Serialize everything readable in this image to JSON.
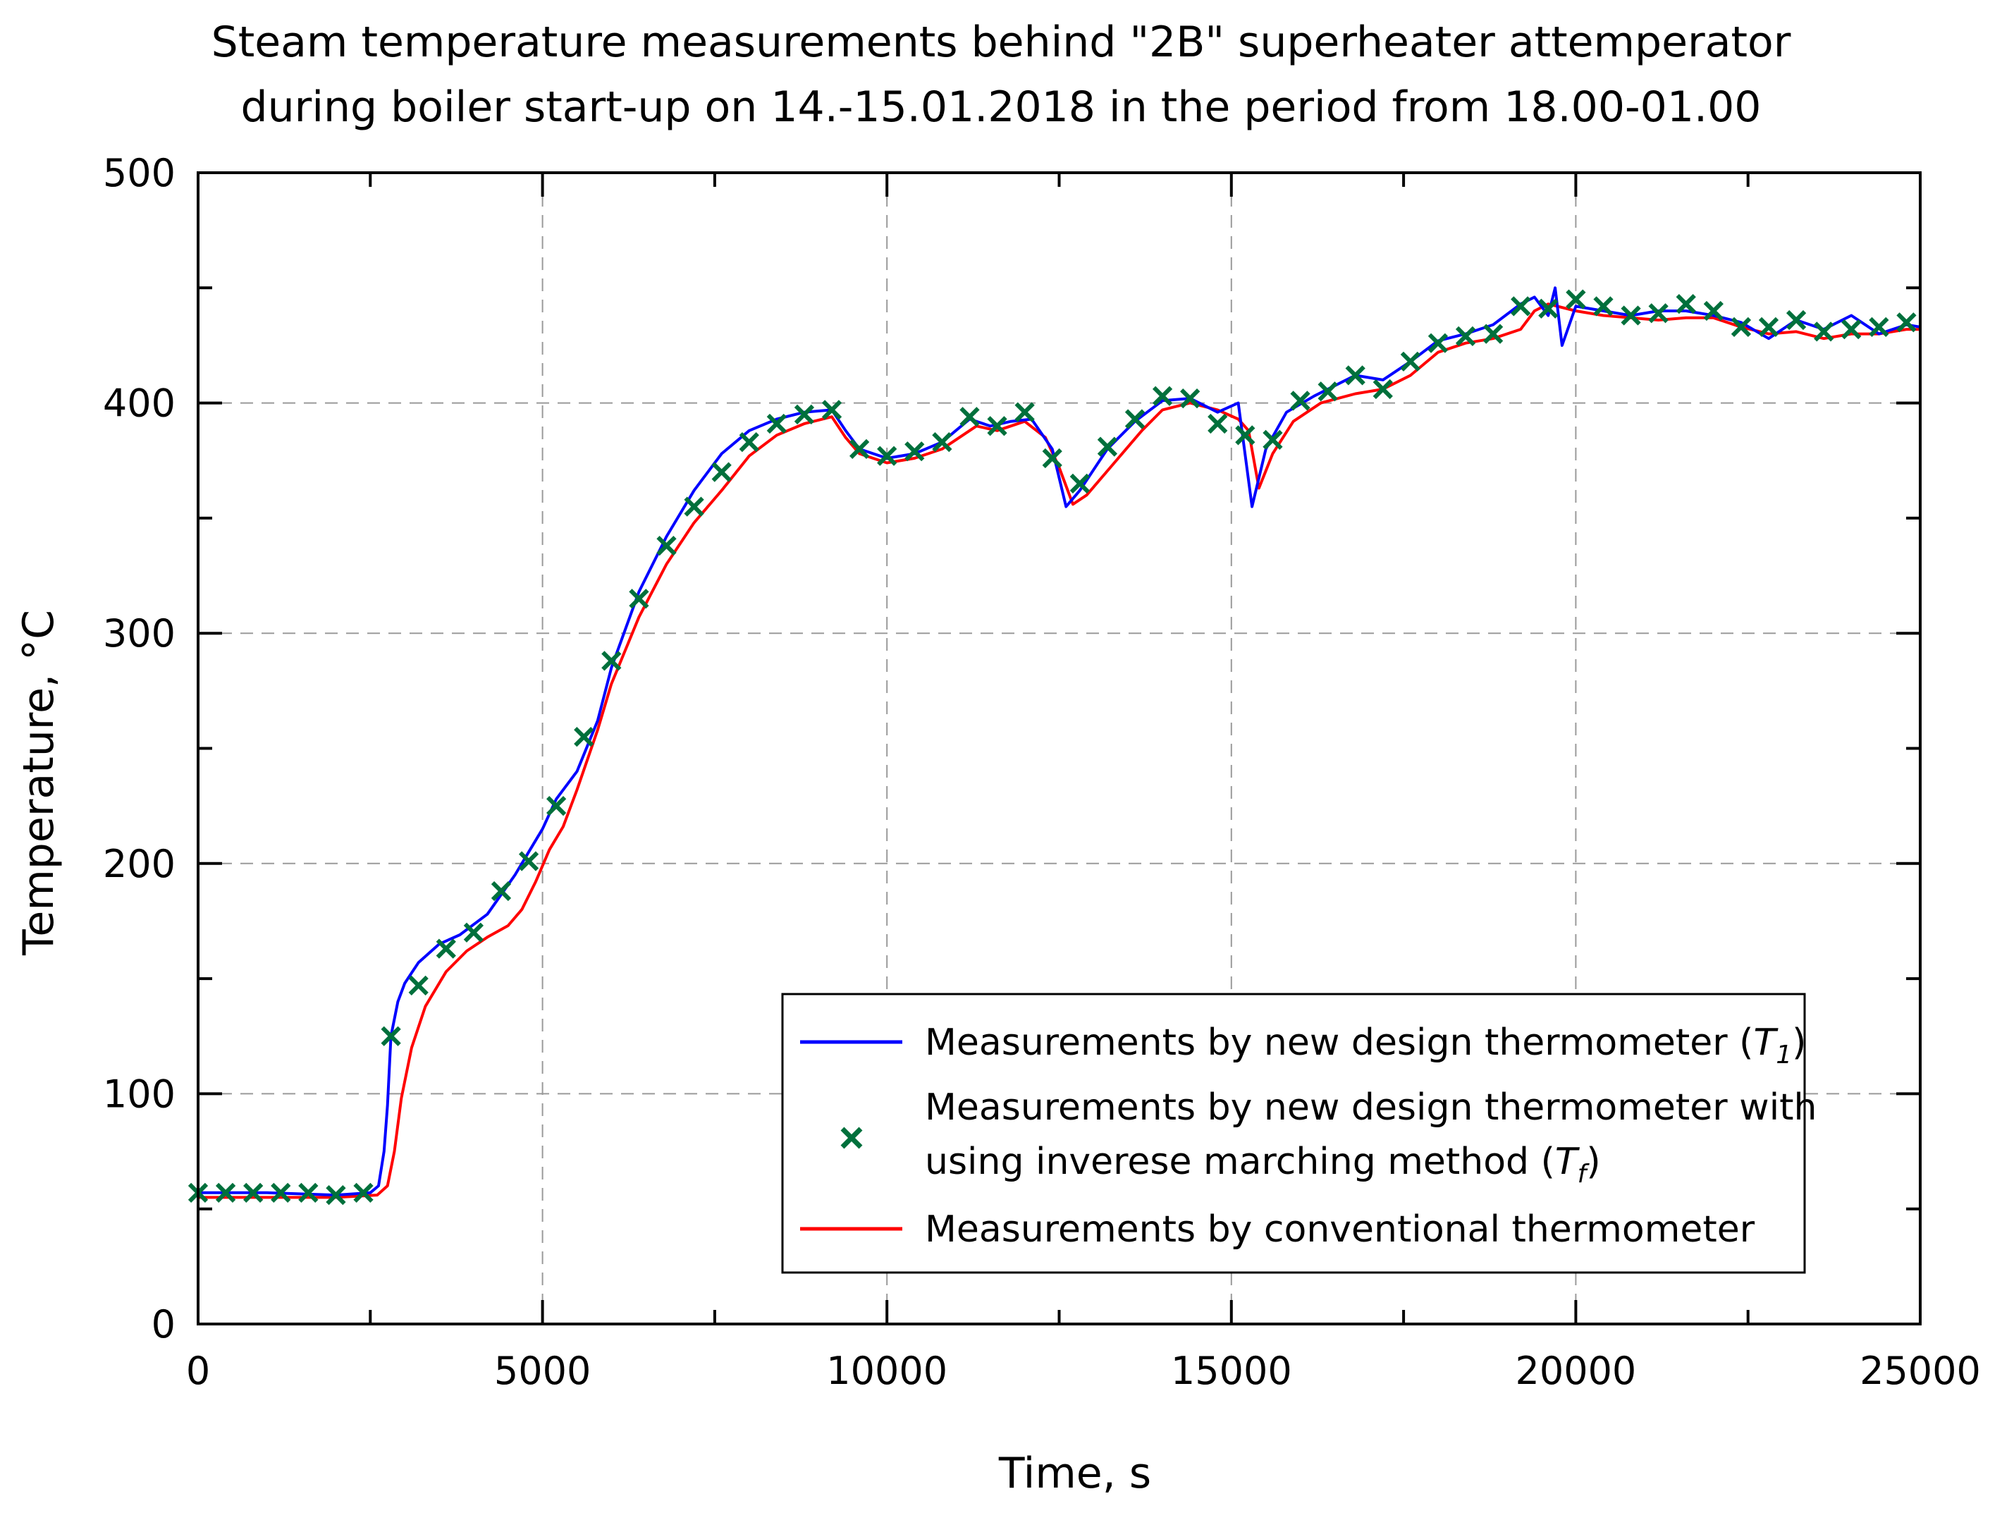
{
  "chart_data": {
    "type": "line",
    "title": [
      "Steam temperature measurements behind \"2B\" superheater attemperator",
      "during boiler start-up on 14.-15.01.2018 in the period from 18.00-01.00"
    ],
    "xlabel": "Time, s",
    "ylabel": "Temperature, °C",
    "xlim": [
      0,
      25000
    ],
    "ylim": [
      0,
      500
    ],
    "xticks": [
      0,
      5000,
      10000,
      15000,
      20000,
      25000
    ],
    "yticks": [
      0,
      100,
      200,
      300,
      400,
      500
    ],
    "grid": true,
    "legend_position": "bottom-right",
    "series": [
      {
        "name": "Measurements by new design thermometer",
        "name_symbol": "T",
        "name_subscript": "1",
        "style": "line",
        "color": "#0000ff",
        "x": [
          0,
          1000,
          2000,
          2500,
          2620,
          2700,
          2750,
          2800,
          2900,
          3000,
          3200,
          3500,
          3800,
          4200,
          4600,
          5000,
          5200,
          5500,
          5800,
          6000,
          6400,
          6800,
          7200,
          7600,
          8000,
          8400,
          8800,
          9200,
          9400,
          9600,
          10000,
          10400,
          10800,
          11000,
          11200,
          11500,
          11800,
          12100,
          12400,
          12600,
          12800,
          13200,
          13600,
          14000,
          14400,
          14800,
          15100,
          15300,
          15500,
          15800,
          16200,
          16800,
          17200,
          17600,
          18000,
          18400,
          18800,
          19200,
          19400,
          19600,
          19700,
          19800,
          20000,
          20400,
          20800,
          21200,
          21600,
          22000,
          22400,
          22800,
          23200,
          23600,
          24000,
          24400,
          24800,
          25000
        ],
        "y": [
          57,
          57,
          56,
          57,
          60,
          75,
          95,
          125,
          140,
          148,
          157,
          165,
          169,
          178,
          195,
          215,
          228,
          240,
          262,
          285,
          318,
          342,
          362,
          378,
          388,
          393,
          396,
          397,
          388,
          380,
          376,
          378,
          383,
          388,
          393,
          390,
          392,
          393,
          380,
          355,
          362,
          380,
          392,
          401,
          402,
          396,
          400,
          355,
          380,
          396,
          403,
          412,
          410,
          418,
          427,
          430,
          434,
          443,
          446,
          438,
          450,
          425,
          442,
          440,
          438,
          440,
          440,
          438,
          435,
          428,
          436,
          432,
          438,
          430,
          434,
          433
        ]
      },
      {
        "name": "Measurements by new design thermometer with using inverese marching method",
        "name_line1": "Measurements by new design thermometer with",
        "name_line2": "using inverese marching method",
        "name_symbol": "T",
        "name_subscript": "f",
        "style": "marker-x",
        "color": "#00703c",
        "x": [
          0,
          400,
          800,
          1200,
          1600,
          2000,
          2400,
          2800,
          3200,
          3600,
          4000,
          4400,
          4800,
          5200,
          5600,
          6000,
          6400,
          6800,
          7200,
          7600,
          8000,
          8400,
          8800,
          9200,
          9600,
          10000,
          10400,
          10800,
          11200,
          11600,
          12000,
          12400,
          12800,
          13200,
          13600,
          14000,
          14400,
          14800,
          15200,
          15600,
          16000,
          16400,
          16800,
          17200,
          17600,
          18000,
          18400,
          18800,
          19200,
          19600,
          20000,
          20400,
          20800,
          21200,
          21600,
          22000,
          22400,
          22800,
          23200,
          23600,
          24000,
          24400,
          24800
        ],
        "y": [
          57,
          57,
          57,
          57,
          57,
          56,
          57,
          125,
          147,
          163,
          170,
          188,
          201,
          225,
          255,
          288,
          315,
          338,
          355,
          370,
          383,
          391,
          395,
          397,
          380,
          377,
          379,
          383,
          394,
          390,
          396,
          376,
          365,
          381,
          393,
          403,
          402,
          391,
          386,
          384,
          401,
          405,
          412,
          406,
          418,
          426,
          429,
          430,
          442,
          441,
          445,
          442,
          438,
          439,
          443,
          440,
          433,
          433,
          436,
          431,
          432,
          433,
          435
        ]
      },
      {
        "name": "Measurements by conventional thermometer",
        "style": "line",
        "color": "#ff0000",
        "x": [
          0,
          1000,
          2000,
          2600,
          2750,
          2850,
          2950,
          3100,
          3300,
          3600,
          3900,
          4200,
          4500,
          4700,
          4900,
          5100,
          5300,
          5500,
          5800,
          6000,
          6400,
          6800,
          7200,
          7600,
          8000,
          8400,
          8800,
          9200,
          9400,
          9600,
          10000,
          10400,
          10800,
          11000,
          11300,
          11600,
          12000,
          12300,
          12500,
          12700,
          12900,
          13300,
          13700,
          14000,
          14400,
          14800,
          15100,
          15250,
          15400,
          15600,
          15900,
          16300,
          16800,
          17200,
          17600,
          18000,
          18400,
          18800,
          19200,
          19400,
          19600,
          20000,
          20400,
          20800,
          21200,
          21600,
          22000,
          22400,
          22800,
          23200,
          23600,
          24000,
          24400,
          24800,
          25000
        ],
        "y": [
          55,
          55,
          55,
          56,
          60,
          75,
          98,
          120,
          138,
          153,
          162,
          168,
          173,
          180,
          192,
          206,
          216,
          232,
          258,
          278,
          307,
          330,
          348,
          362,
          377,
          386,
          391,
          394,
          385,
          378,
          374,
          376,
          380,
          384,
          390,
          388,
          392,
          385,
          372,
          356,
          360,
          374,
          388,
          397,
          400,
          397,
          393,
          388,
          363,
          378,
          392,
          400,
          404,
          406,
          412,
          422,
          426,
          428,
          432,
          440,
          443,
          440,
          438,
          437,
          436,
          437,
          437,
          433,
          430,
          431,
          428,
          430,
          430,
          432,
          432
        ]
      }
    ]
  }
}
